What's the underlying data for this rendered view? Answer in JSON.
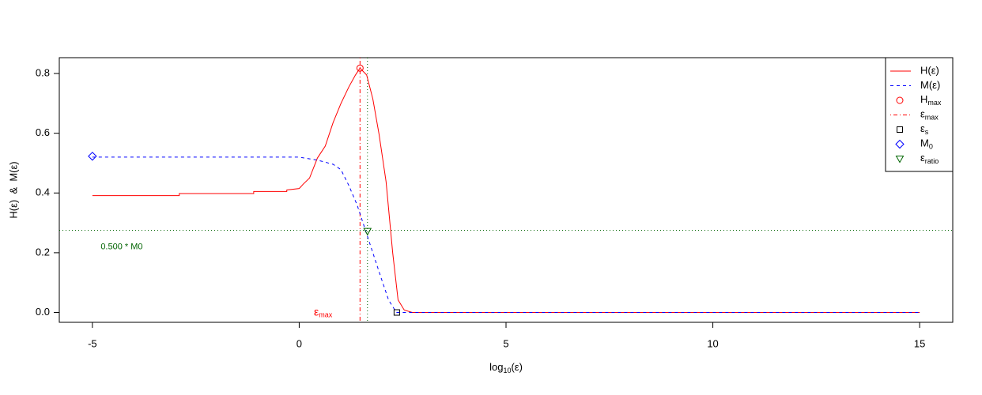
{
  "chart_data": {
    "type": "line",
    "x_label": {
      "text": "log",
      "sub": "10",
      "tail": "(ε)"
    },
    "y_label": "H(ε)  &  M(ε)",
    "xlim": [
      -5.8,
      15.8
    ],
    "xticks": [
      -5,
      0,
      5,
      10,
      15
    ],
    "ylim": [
      -0.033,
      0.853
    ],
    "yticks": [
      {
        "value": 0,
        "label": "0.0"
      },
      0.2,
      0.4,
      0.6,
      0.8
    ],
    "legend": "topright",
    "series": [
      {
        "name": "H(ε)",
        "color": "#ff0000",
        "dash": "solid",
        "x": [
          -5,
          -2.9,
          -2.9,
          -1.1,
          -1.1,
          -0.3,
          -0.3,
          0,
          0.1,
          0.25,
          0.44,
          0.63,
          0.82,
          1.01,
          1.2,
          1.36,
          1.47,
          1.63,
          1.78,
          1.93,
          2.1,
          2.26,
          2.39,
          2.54,
          2.73,
          15
        ],
        "values": [
          0.391,
          0.391,
          0.398,
          0.398,
          0.405,
          0.405,
          0.41,
          0.415,
          0.43,
          0.45,
          0.517,
          0.557,
          0.636,
          0.7,
          0.755,
          0.795,
          0.818,
          0.795,
          0.715,
          0.597,
          0.438,
          0.2,
          0.042,
          0.008,
          0,
          0
        ]
      },
      {
        "name": "M(ε)",
        "color": "#0000ff",
        "dash": "dashed",
        "x": [
          -5,
          0,
          0.44,
          0.82,
          1.01,
          1.2,
          1.4,
          1.59,
          1.78,
          1.97,
          2.16,
          2.35,
          15
        ],
        "values": [
          0.52,
          0.52,
          0.51,
          0.496,
          0.478,
          0.425,
          0.36,
          0.28,
          0.2,
          0.12,
          0.042,
          0,
          0
        ]
      }
    ],
    "markers": [
      {
        "label": "H",
        "sub": "max",
        "shape": "circle",
        "color": "#ff0000",
        "x": 1.47,
        "y": 0.818
      },
      {
        "label": "ε",
        "sub": "s",
        "shape": "square",
        "color": "#000000",
        "x": 2.36,
        "y": 0
      },
      {
        "label": "M",
        "sub": "0",
        "shape": "diamond",
        "color": "#0000ff",
        "x": -5,
        "y": 0.523
      },
      {
        "label": "ε",
        "sub": "ratio",
        "shape": "triangle",
        "color": "#006400",
        "x": 1.65,
        "y": 0.272
      }
    ],
    "vlines": [
      {
        "label": "ε",
        "sub": "max",
        "x": 1.47,
        "color": "#ff0000",
        "dash": "dotdash"
      },
      {
        "x": 1.65,
        "color": "#006400",
        "dash": "dotted"
      }
    ],
    "hlines": [
      {
        "y": 0.275,
        "color": "#006400",
        "dash": "dotted"
      }
    ],
    "annotations": [
      {
        "text": "0.500 * M0",
        "x": -4.8,
        "y": 0.22,
        "color": "#006400"
      },
      {
        "text": "ε",
        "sub": "max",
        "x": 0.8,
        "y": 0,
        "color": "#ff0000"
      }
    ]
  }
}
